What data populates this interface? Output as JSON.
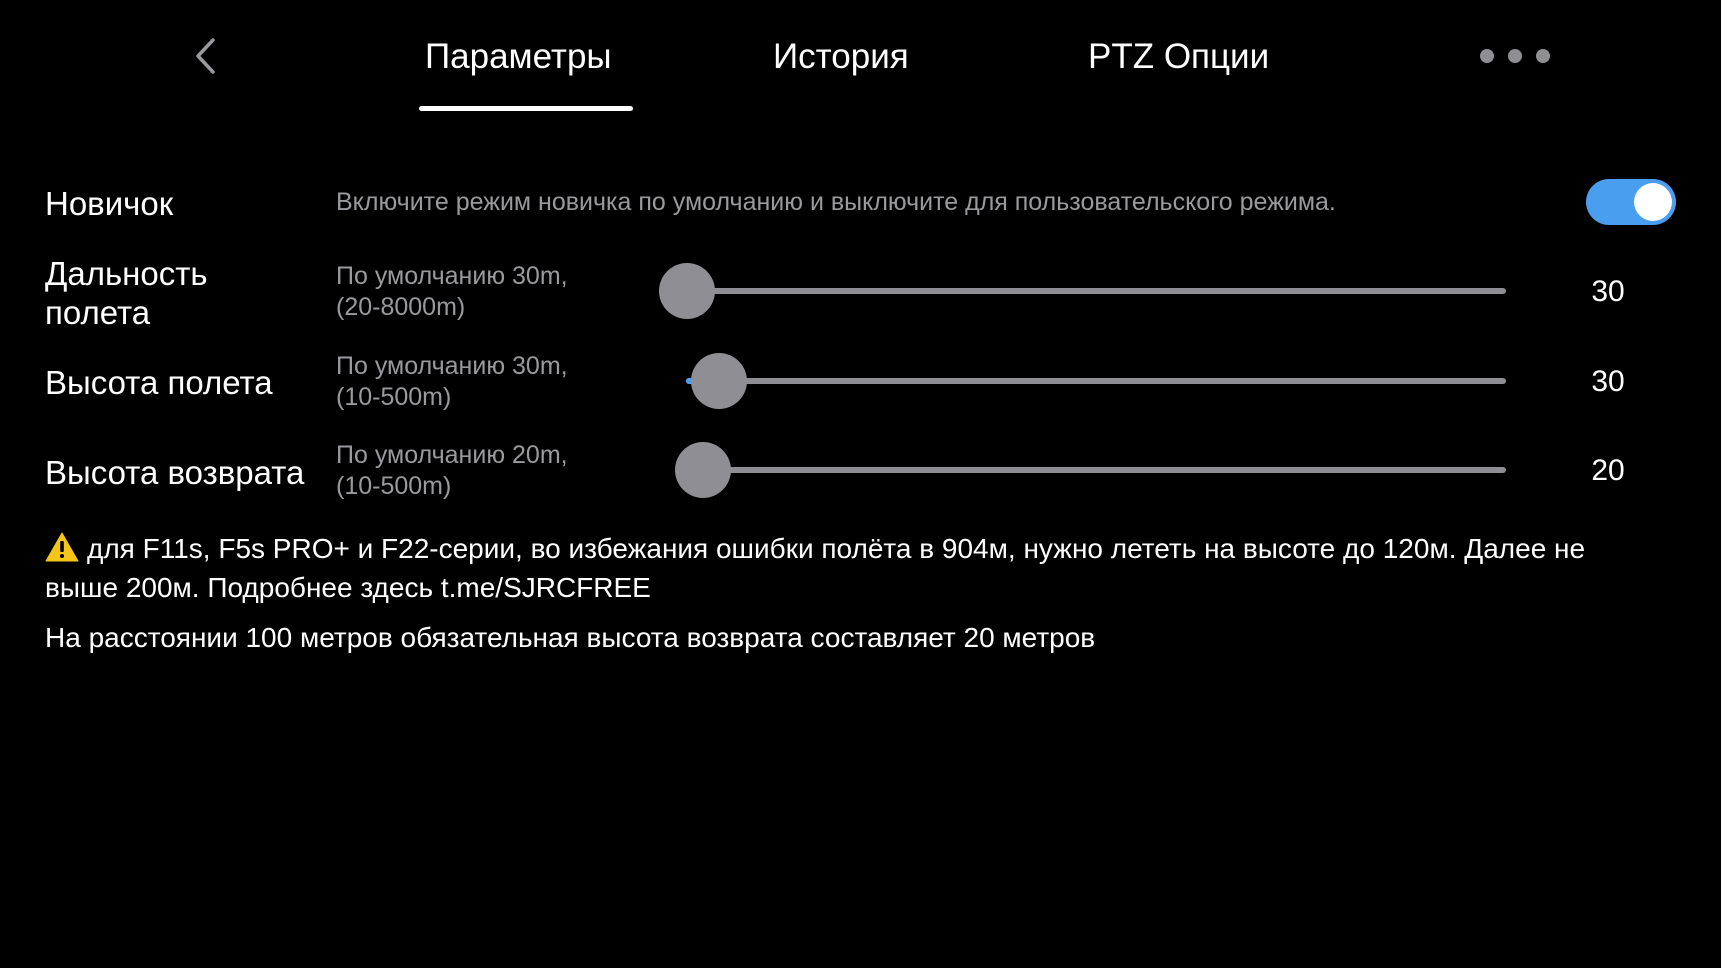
{
  "header": {
    "tabs": [
      {
        "label": "Параметры",
        "active": true
      },
      {
        "label": "История",
        "active": false
      },
      {
        "label": "PTZ Опции",
        "active": false
      }
    ],
    "back_icon": "chevron-left-icon",
    "more_icon": "more-dots-icon"
  },
  "settings": {
    "novice": {
      "label": "Новичок",
      "description": "Включите режим новичка по умолчанию и выключите для пользовательского режима.",
      "enabled": true
    },
    "flight_distance": {
      "label_line1": "Дальность",
      "label_line2": "полета",
      "desc_line1": "По умолчанию 30m,",
      "desc_line2": "(20-8000m)",
      "value": "30",
      "min": 20,
      "max": 8000,
      "current": 30
    },
    "flight_height": {
      "label": "Высота полета",
      "desc_line1": "По умолчанию 30m,",
      "desc_line2": "(10-500m)",
      "value": "30",
      "min": 10,
      "max": 500,
      "current": 30
    },
    "return_height": {
      "label": "Высота возврата",
      "desc_line1": "По умолчанию 20m,",
      "desc_line2": "(10-500m)",
      "value": "20",
      "min": 10,
      "max": 500,
      "current": 20
    }
  },
  "notes": {
    "warning_icon": "warning-icon",
    "warning_text_line1": "для F11s, F5s PRO+ и F22-серии, во избежания ошибки полёта в 904м, нужно лететь на высоте до 120м. Далее не",
    "warning_text_line2": "выше 200м. Подробнее здесь t.me/SJRCFREE",
    "info_text": "На расстоянии 100 метров обязательная высота возврата составляет 20 метров"
  },
  "colors": {
    "accent": "#4a9ef0",
    "background": "#000000",
    "muted_text": "#9a9a9e",
    "slider_gray": "#8e8e93"
  }
}
